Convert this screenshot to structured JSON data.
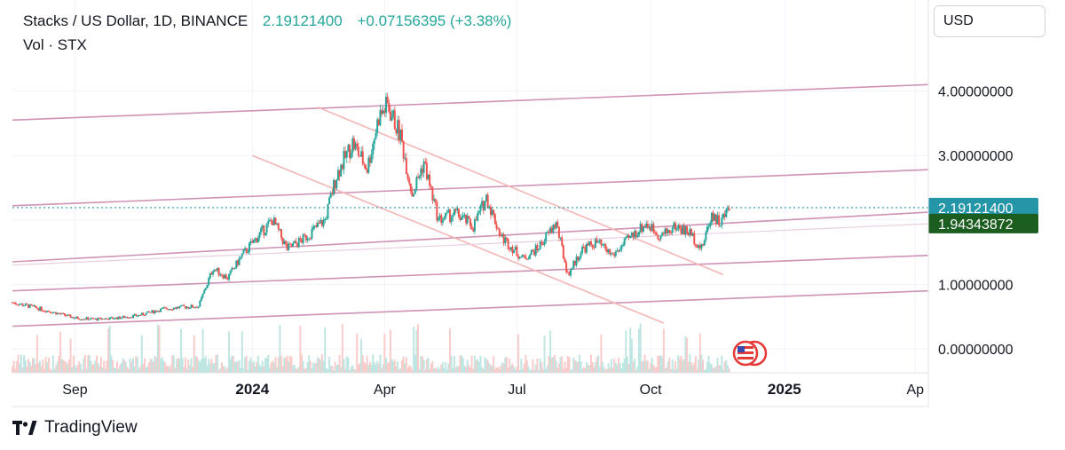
{
  "legend": {
    "symbol_text": "Stacks / US Dollar, 1D, BINANCE",
    "price_text": "2.19121400",
    "change_text": "+0.07156395 (+3.38%)"
  },
  "volume_label": "Vol · STX",
  "currency_button": "USD",
  "brand": "TradingView",
  "colors": {
    "up": "#26a69a",
    "down": "#ef5350",
    "channel": "#ce93b5",
    "downtrend": "#f4b6b6",
    "current_price_badge": "#2596a8",
    "secondary_price_badge": "#1b5e20"
  },
  "chart_data": {
    "type": "candlestick",
    "title": "Stacks / US Dollar, 1D, BINANCE",
    "interval": "1D",
    "last_price": 2.191214,
    "change": 0.07156395,
    "change_percent": 3.38,
    "price_labels": [
      {
        "value": 0,
        "text": "0.00000000"
      },
      {
        "value": 1,
        "text": "1.00000000"
      },
      {
        "value": 2,
        "text": "2.00000000"
      },
      {
        "value": 3,
        "text": "3.00000000"
      },
      {
        "value": 4,
        "text": "4.00000000"
      }
    ],
    "price_badges": [
      {
        "value": 2.191214,
        "text": "2.19121400",
        "kind": "current"
      },
      {
        "value": 1.94343872,
        "text": "1.94343872",
        "kind": "secondary"
      }
    ],
    "time_labels": [
      {
        "date": "2023-09-01",
        "text": "Sep",
        "bold": false
      },
      {
        "date": "2024-01-01",
        "text": "2024",
        "bold": true
      },
      {
        "date": "2024-04-01",
        "text": "Apr",
        "bold": false
      },
      {
        "date": "2024-07-01",
        "text": "Jul",
        "bold": false
      },
      {
        "date": "2024-10-01",
        "text": "Oct",
        "bold": false
      },
      {
        "date": "2025-01-01",
        "text": "2025",
        "bold": true
      },
      {
        "date": "2025-04-01",
        "text": "Ap",
        "bold": false
      }
    ],
    "series": [
      {
        "name": "STX",
        "points": [
          {
            "date": "2023-07-20",
            "close": 0.72
          },
          {
            "date": "2023-08-01",
            "close": 0.66
          },
          {
            "date": "2023-08-15",
            "close": 0.58
          },
          {
            "date": "2023-09-01",
            "close": 0.48
          },
          {
            "date": "2023-09-15",
            "close": 0.46
          },
          {
            "date": "2023-10-01",
            "close": 0.48
          },
          {
            "date": "2023-10-15",
            "close": 0.52
          },
          {
            "date": "2023-11-01",
            "close": 0.62
          },
          {
            "date": "2023-11-15",
            "close": 0.65
          },
          {
            "date": "2023-11-25",
            "close": 0.66
          },
          {
            "date": "2023-12-05",
            "close": 1.25
          },
          {
            "date": "2023-12-15",
            "close": 1.1
          },
          {
            "date": "2023-12-25",
            "close": 1.45
          },
          {
            "date": "2024-01-05",
            "close": 1.75
          },
          {
            "date": "2024-01-15",
            "close": 2.0
          },
          {
            "date": "2024-01-25",
            "close": 1.55
          },
          {
            "date": "2024-02-05",
            "close": 1.7
          },
          {
            "date": "2024-02-20",
            "close": 2.0
          },
          {
            "date": "2024-02-28",
            "close": 2.7
          },
          {
            "date": "2024-03-10",
            "close": 3.2
          },
          {
            "date": "2024-03-20",
            "close": 2.8
          },
          {
            "date": "2024-03-28",
            "close": 3.6
          },
          {
            "date": "2024-04-03",
            "close": 3.78
          },
          {
            "date": "2024-04-12",
            "close": 3.3
          },
          {
            "date": "2024-04-20",
            "close": 2.4
          },
          {
            "date": "2024-04-28",
            "close": 2.9
          },
          {
            "date": "2024-05-08",
            "close": 2.0
          },
          {
            "date": "2024-05-20",
            "close": 2.1
          },
          {
            "date": "2024-06-01",
            "close": 1.9
          },
          {
            "date": "2024-06-10",
            "close": 2.35
          },
          {
            "date": "2024-06-20",
            "close": 1.75
          },
          {
            "date": "2024-07-05",
            "close": 1.4
          },
          {
            "date": "2024-07-15",
            "close": 1.55
          },
          {
            "date": "2024-07-28",
            "close": 1.95
          },
          {
            "date": "2024-08-05",
            "close": 1.15
          },
          {
            "date": "2024-08-15",
            "close": 1.55
          },
          {
            "date": "2024-08-25",
            "close": 1.65
          },
          {
            "date": "2024-09-05",
            "close": 1.45
          },
          {
            "date": "2024-09-18",
            "close": 1.75
          },
          {
            "date": "2024-09-28",
            "close": 1.95
          },
          {
            "date": "2024-10-08",
            "close": 1.75
          },
          {
            "date": "2024-10-18",
            "close": 1.9
          },
          {
            "date": "2024-10-28",
            "close": 1.8
          },
          {
            "date": "2024-11-05",
            "close": 1.55
          },
          {
            "date": "2024-11-12",
            "close": 2.1
          },
          {
            "date": "2024-11-18",
            "close": 1.95
          },
          {
            "date": "2024-11-24",
            "close": 2.191214
          }
        ]
      }
    ],
    "trendlines": [
      {
        "kind": "channel",
        "from": {
          "date": "2023-07-20",
          "price": 3.55
        },
        "to": {
          "date": "2025-04-10",
          "price": 4.1
        }
      },
      {
        "kind": "channel",
        "from": {
          "date": "2023-07-20",
          "price": 2.22
        },
        "to": {
          "date": "2025-04-10",
          "price": 2.78
        }
      },
      {
        "kind": "channel",
        "from": {
          "date": "2023-07-20",
          "price": 1.35
        },
        "to": {
          "date": "2025-04-10",
          "price": 2.12
        }
      },
      {
        "kind": "channel",
        "from": {
          "date": "2023-07-20",
          "price": 0.9
        },
        "to": {
          "date": "2025-04-10",
          "price": 1.45
        }
      },
      {
        "kind": "channel",
        "from": {
          "date": "2023-07-20",
          "price": 0.35
        },
        "to": {
          "date": "2025-04-10",
          "price": 0.9
        }
      },
      {
        "kind": "downtrend",
        "from": {
          "date": "2024-02-15",
          "price": 3.75
        },
        "to": {
          "date": "2024-11-20",
          "price": 1.15
        }
      },
      {
        "kind": "downtrend",
        "from": {
          "date": "2024-01-01",
          "price": 3.0
        },
        "to": {
          "date": "2024-10-10",
          "price": 0.4
        }
      },
      {
        "kind": "support",
        "from": {
          "date": "2023-07-20",
          "price": 1.3
        },
        "to": {
          "date": "2025-04-10",
          "price": 1.94
        }
      }
    ],
    "volume": {
      "name": "Vol · STX"
    },
    "grid": true,
    "legend_position": "top-left"
  }
}
